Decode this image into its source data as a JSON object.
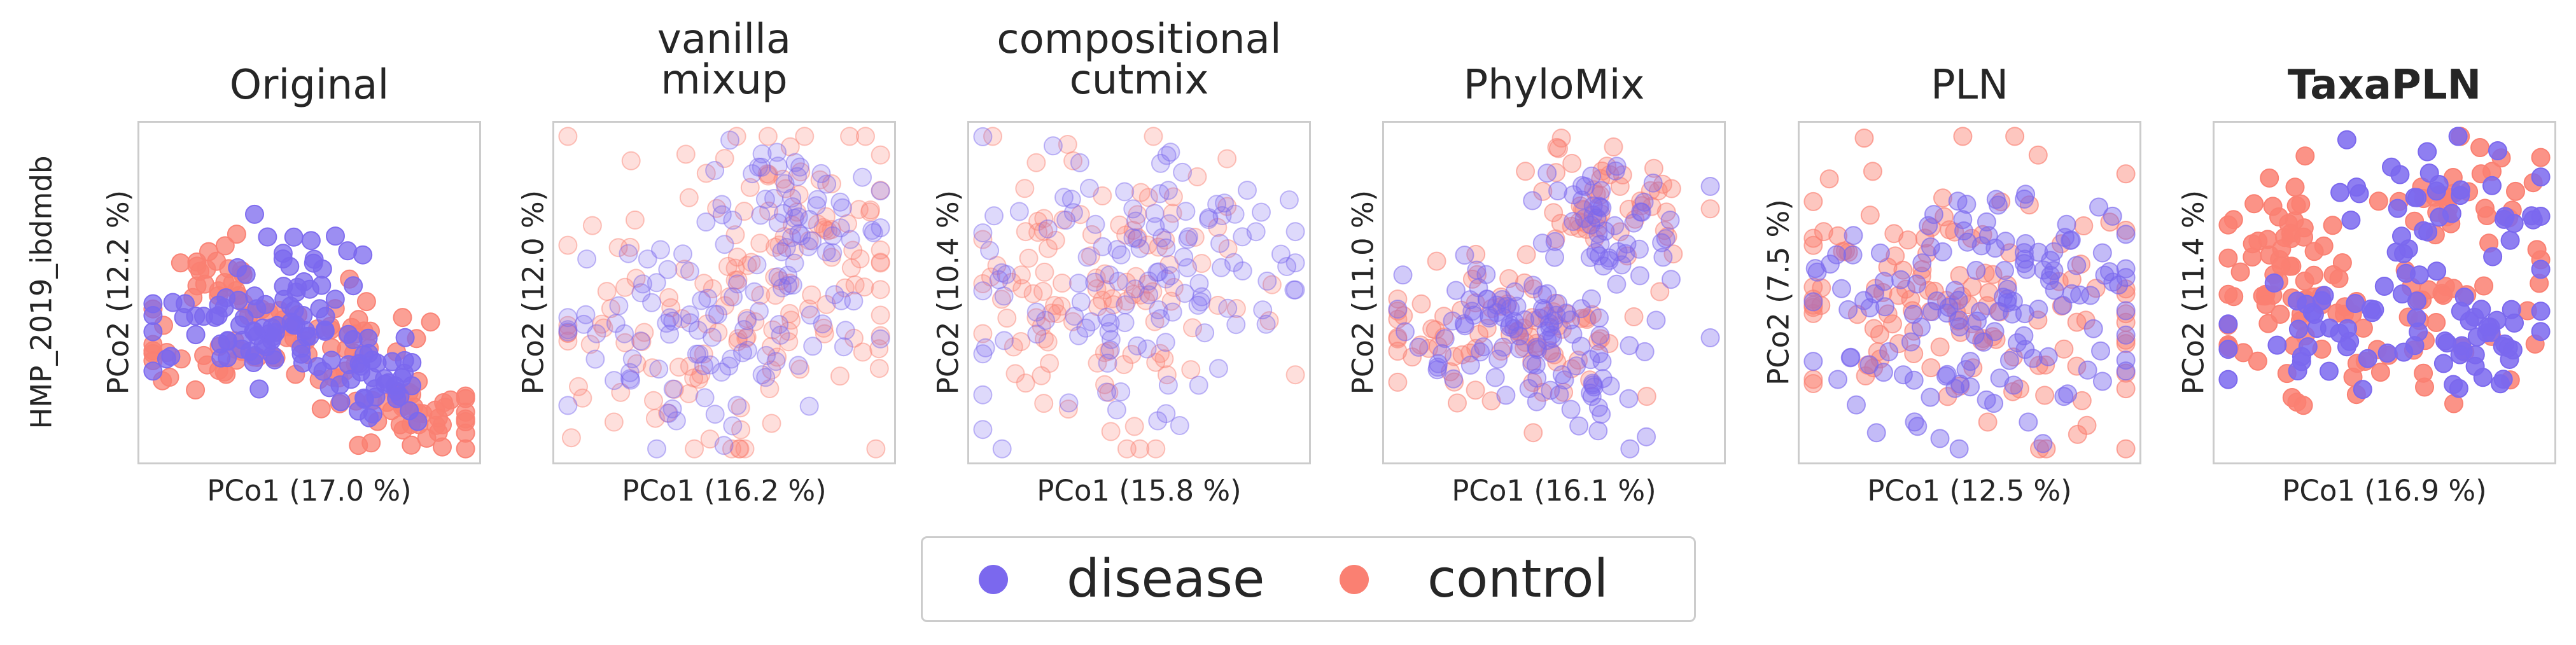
{
  "row_label": "HMP_2019_ibdmdb",
  "colors": {
    "disease": "#7b68ee",
    "control": "#fa8072",
    "frame": "#cccccc"
  },
  "legend": [
    {
      "label": "disease",
      "color": "#7b68ee"
    },
    {
      "label": "control",
      "color": "#fa8072"
    }
  ],
  "chart_data": [
    {
      "type": "scatter",
      "title": "Original",
      "title_bold": false,
      "xlabel": "PCo1 (17.0 %)",
      "ylabel": "PCo2 (12.2 %)",
      "series": [
        {
          "name": "disease"
        },
        {
          "name": "control"
        }
      ]
    },
    {
      "type": "scatter",
      "title": "vanilla\nmixup",
      "title_bold": false,
      "xlabel": "PCo1 (16.2 %)",
      "ylabel": "PCo2 (12.0 %)",
      "series": [
        {
          "name": "disease"
        },
        {
          "name": "control"
        }
      ]
    },
    {
      "type": "scatter",
      "title": "compositional\ncutmix",
      "title_bold": false,
      "xlabel": "PCo1 (15.8 %)",
      "ylabel": "PCo2 (10.4 %)",
      "series": [
        {
          "name": "disease"
        },
        {
          "name": "control"
        }
      ]
    },
    {
      "type": "scatter",
      "title": "PhyloMix",
      "title_bold": false,
      "xlabel": "PCo1 (16.1 %)",
      "ylabel": "PCo2 (11.0 %)",
      "series": [
        {
          "name": "disease"
        },
        {
          "name": "control"
        }
      ]
    },
    {
      "type": "scatter",
      "title": "PLN",
      "title_bold": false,
      "xlabel": "PCo1 (12.5 %)",
      "ylabel": "PCo2 (7.5 %)",
      "series": [
        {
          "name": "disease"
        },
        {
          "name": "control"
        }
      ]
    },
    {
      "type": "scatter",
      "title": "TaxaPLN",
      "title_bold": true,
      "xlabel": "PCo1 (16.9 %)",
      "ylabel": "PCo2 (11.4 %)",
      "series": [
        {
          "name": "disease"
        },
        {
          "name": "control"
        }
      ]
    }
  ]
}
